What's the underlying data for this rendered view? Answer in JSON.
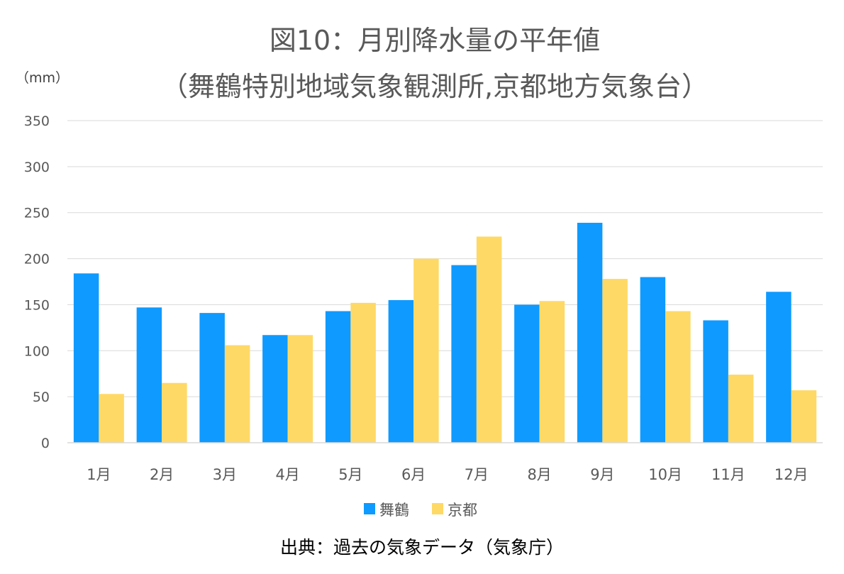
{
  "chart_data": {
    "type": "bar",
    "title": "図10：月別降水量の平年値",
    "subtitle": "（舞鶴特別地域気象観測所,京都地方気象台）",
    "ylabel": "（mm）",
    "xlabel": "",
    "ylim": [
      0,
      350
    ],
    "yticks": [
      "0",
      "50",
      "100",
      "150",
      "200",
      "250",
      "300",
      "350"
    ],
    "categories": [
      "1月",
      "2月",
      "3月",
      "4月",
      "5月",
      "6月",
      "7月",
      "8月",
      "9月",
      "10月",
      "11月",
      "12月"
    ],
    "series": [
      {
        "name": "舞鶴",
        "color": "#0f9aff",
        "values": [
          184,
          147,
          141,
          117,
          143,
          155,
          193,
          150,
          239,
          180,
          133,
          164
        ]
      },
      {
        "name": "京都",
        "color": "#ffd966",
        "values": [
          53,
          65,
          106,
          117,
          152,
          200,
          224,
          154,
          178,
          143,
          74,
          57
        ]
      }
    ],
    "grid": true,
    "legend_position": "bottom"
  },
  "source_note": "出典：過去の気象データ（気象庁）"
}
